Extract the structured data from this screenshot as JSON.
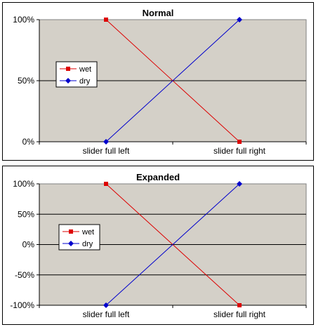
{
  "chart_data": [
    {
      "type": "line",
      "title": "Normal",
      "categories": [
        "slider full left",
        "slider full right"
      ],
      "y_ticks": [
        "0%",
        "50%",
        "100%"
      ],
      "ylim": [
        0,
        100
      ],
      "grid": true,
      "legend_position": "left",
      "series": [
        {
          "name": "wet",
          "values": [
            100,
            0
          ],
          "color": "#dd0000",
          "marker": "square"
        },
        {
          "name": "dry",
          "values": [
            0,
            100
          ],
          "color": "#0000cc",
          "marker": "diamond"
        }
      ]
    },
    {
      "type": "line",
      "title": "Expanded",
      "categories": [
        "slider full left",
        "slider full right"
      ],
      "y_ticks": [
        "-100%",
        "-50%",
        "0%",
        "50%",
        "100%"
      ],
      "ylim": [
        -100,
        100
      ],
      "grid": true,
      "legend_position": "left",
      "series": [
        {
          "name": "wet",
          "values": [
            100,
            -100
          ],
          "color": "#dd0000",
          "marker": "square"
        },
        {
          "name": "dry",
          "values": [
            -100,
            100
          ],
          "color": "#0000cc",
          "marker": "diamond"
        }
      ]
    }
  ],
  "colors": {
    "plot_background": "#d4d0c8",
    "gridline": "#000000"
  }
}
